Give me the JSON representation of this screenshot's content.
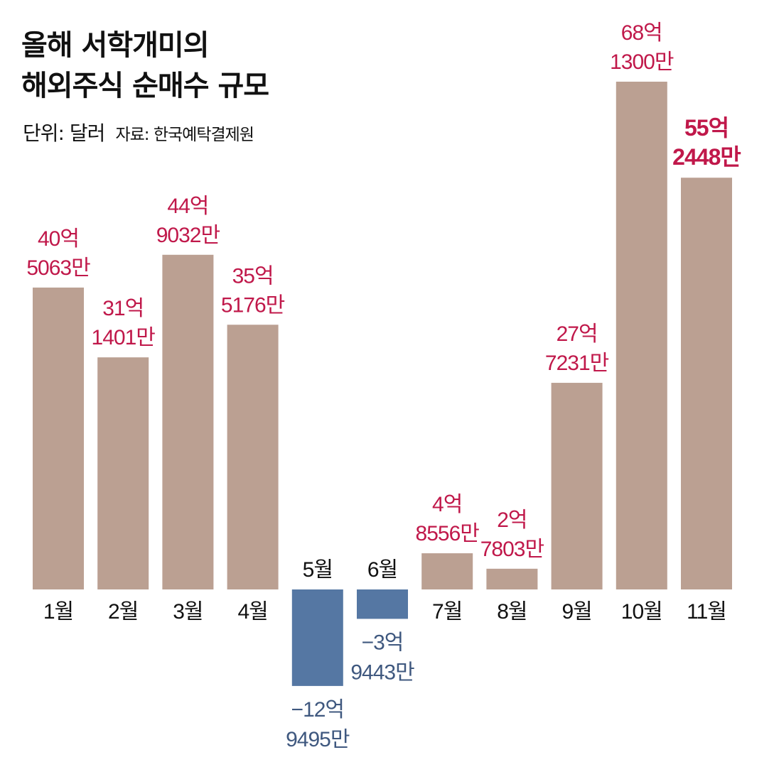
{
  "title_lines": [
    "올해 서학개미의",
    "해외주식 순매수 규모"
  ],
  "unit_text": "단위: 달러",
  "source_text": "자료: 한국예탁결제원",
  "colors": {
    "positive_bar": "#bba092",
    "negative_bar": "#5577a3",
    "positive_label": "#c0184a",
    "negative_label": "#3f587f",
    "axis_text": "#111111"
  },
  "chart_data": {
    "type": "bar",
    "title": "올해 서학개미의 해외주식 순매수 규모",
    "unit": "단위: 달러",
    "source": "자료: 한국예탁결제원",
    "categories": [
      "1월",
      "2월",
      "3월",
      "4월",
      "5월",
      "6월",
      "7월",
      "8월",
      "9월",
      "10월",
      "11월"
    ],
    "values": [
      4050630000,
      3114010000,
      4490320000,
      3551760000,
      -1294950000,
      -394430000,
      485560000,
      278030000,
      2772310000,
      6813000000,
      5524480000
    ],
    "data_labels": [
      [
        "40억",
        "5063만"
      ],
      [
        "31억",
        "1401만"
      ],
      [
        "44억",
        "9032만"
      ],
      [
        "35억",
        "5176만"
      ],
      [
        "−12억",
        "9495만"
      ],
      [
        "−3억",
        "9443만"
      ],
      [
        "4억",
        "8556만"
      ],
      [
        "2억",
        "7803만"
      ],
      [
        "27억",
        "7231만"
      ],
      [
        "68억",
        "1300만"
      ],
      [
        "55억",
        "2448만"
      ]
    ],
    "highlight_index": 10,
    "xlabel": "",
    "ylabel": "",
    "ylim": [
      -1294950000,
      6813000000
    ],
    "grid": false,
    "legend": "none"
  }
}
